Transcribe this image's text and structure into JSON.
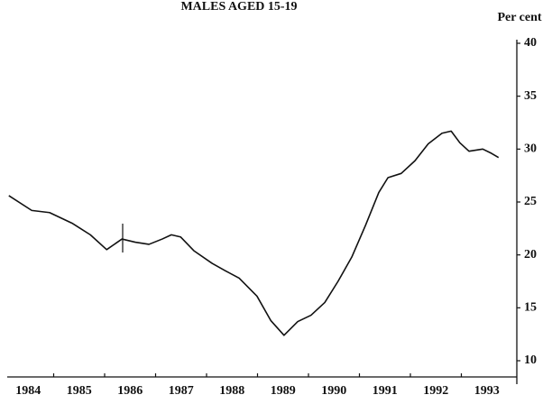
{
  "chart_data": {
    "type": "line",
    "title": "MALES AGED 15-19",
    "y_label": "Per cent",
    "x": [
      1984.12,
      1984.57,
      1984.92,
      1985.36,
      1985.72,
      1986.04,
      1986.34,
      1986.6,
      1986.87,
      1987.13,
      1987.31,
      1987.49,
      1987.75,
      1988.11,
      1988.37,
      1988.64,
      1988.99,
      1989.26,
      1989.52,
      1989.79,
      1990.05,
      1990.32,
      1990.58,
      1990.85,
      1991.12,
      1991.38,
      1991.56,
      1991.82,
      1992.09,
      1992.35,
      1992.62,
      1992.8,
      1992.97,
      1993.15,
      1993.42,
      1993.59,
      1993.73
    ],
    "series": [
      {
        "name": "Males aged 15-19",
        "color": "#111111",
        "values": [
          25.6,
          24.2,
          24.0,
          23.0,
          21.9,
          20.5,
          21.5,
          21.2,
          21.0,
          21.5,
          21.9,
          21.7,
          20.4,
          19.2,
          18.5,
          17.8,
          16.1,
          13.8,
          12.4,
          13.7,
          14.3,
          15.5,
          17.5,
          19.8,
          22.8,
          25.9,
          27.3,
          27.7,
          28.9,
          30.5,
          31.5,
          31.7,
          30.6,
          29.8,
          30.0,
          29.6,
          29.2
        ]
      }
    ],
    "xlim": [
      1984,
      1994
    ],
    "xticks": [
      {
        "value": 1984.5,
        "label": "1984"
      },
      {
        "value": 1985.5,
        "label": "1985"
      },
      {
        "value": 1986.5,
        "label": "1986"
      },
      {
        "value": 1987.5,
        "label": "1987"
      },
      {
        "value": 1988.5,
        "label": "1988"
      },
      {
        "value": 1989.5,
        "label": "1989"
      },
      {
        "value": 1990.5,
        "label": "1990"
      },
      {
        "value": 1991.5,
        "label": "1991"
      },
      {
        "value": 1992.5,
        "label": "1992"
      },
      {
        "value": 1993.5,
        "label": "1993"
      }
    ],
    "ylim": [
      10,
      40
    ],
    "yticks": [
      10,
      15,
      20,
      25,
      30,
      35,
      40
    ],
    "y_axis_side": "right",
    "grid": false
  }
}
